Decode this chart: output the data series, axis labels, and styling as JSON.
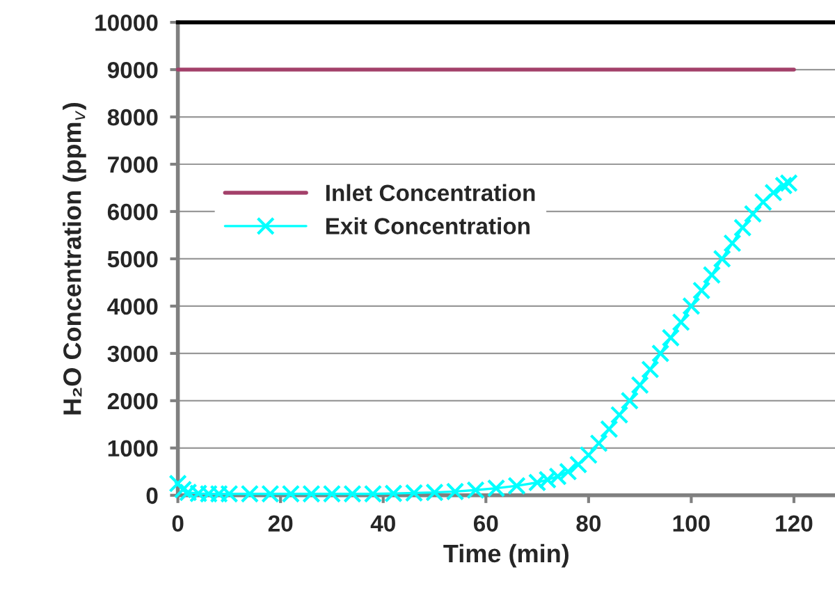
{
  "chart_data": {
    "type": "line",
    "xlabel": "Time (min)",
    "ylabel": "H₂O Concentration (ppm$_{v}$)",
    "xlim": [
      0,
      128
    ],
    "xticks": [
      0,
      20,
      40,
      60,
      80,
      100,
      120
    ],
    "ylim": [
      0,
      10000
    ],
    "yticks": [
      0,
      1000,
      2000,
      3000,
      4000,
      5000,
      6000,
      7000,
      8000,
      9000,
      10000
    ],
    "grid": "y",
    "legend": "left",
    "series": [
      {
        "name": "Inlet Concentration",
        "color": "#a3406a",
        "marker": "none",
        "x": [
          0,
          120
        ],
        "values": [
          9000,
          9000
        ]
      },
      {
        "name": "Exit Concentration",
        "color": "#00ffff",
        "marker": "cross",
        "x": [
          0,
          1,
          2,
          4,
          6,
          8,
          10,
          14,
          18,
          22,
          26,
          30,
          34,
          38,
          42,
          46,
          50,
          54,
          58,
          62,
          66,
          70,
          72,
          74,
          76,
          78,
          80,
          82,
          84,
          86,
          88,
          90,
          92,
          94,
          96,
          98,
          100,
          102,
          104,
          106,
          108,
          110,
          112,
          114,
          116,
          118,
          119
        ],
        "values": [
          250,
          120,
          60,
          40,
          30,
          30,
          30,
          30,
          30,
          30,
          30,
          30,
          30,
          30,
          40,
          50,
          60,
          80,
          110,
          150,
          200,
          270,
          330,
          400,
          500,
          650,
          850,
          1100,
          1400,
          1700,
          2000,
          2330,
          2660,
          3000,
          3330,
          3660,
          4000,
          4330,
          4660,
          5000,
          5330,
          5660,
          5950,
          6200,
          6400,
          6550,
          6600
        ]
      }
    ]
  }
}
